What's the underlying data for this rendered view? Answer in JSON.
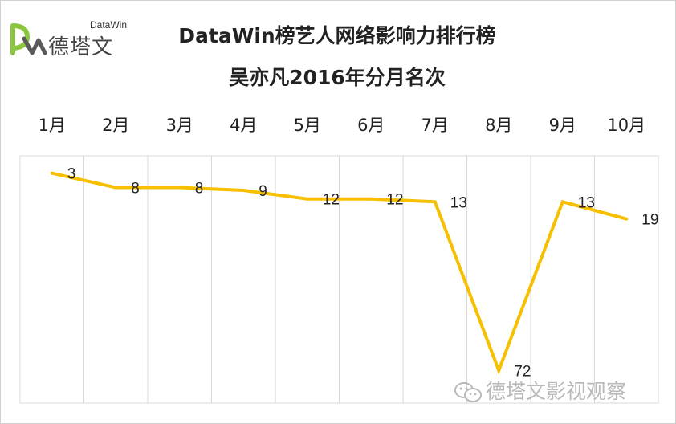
{
  "logo": {
    "brand_en": "DataWin",
    "brand_cn": "德塔文",
    "colors": [
      "#8cc63f",
      "#5a5a5a"
    ]
  },
  "watermark": {
    "icon": "wechat-icon",
    "text": "德塔文影视观察"
  },
  "chart_data": {
    "type": "line",
    "title": "DataWin榜艺人网络影响力排行榜",
    "subtitle": "吴亦凡2016年分月名次",
    "categories": [
      "1月",
      "2月",
      "3月",
      "4月",
      "5月",
      "6月",
      "7月",
      "8月",
      "9月",
      "10月"
    ],
    "series": [
      {
        "values": [
          3,
          8,
          8,
          9,
          12,
          12,
          13,
          72,
          13,
          19
        ],
        "color": "#f6c000"
      }
    ],
    "ylim": [
      0,
      75
    ],
    "y_reversed": true,
    "y_axis_visible": false,
    "x_axis_position": "top",
    "grid": "vertical",
    "legend": "none",
    "data_labels": true
  }
}
